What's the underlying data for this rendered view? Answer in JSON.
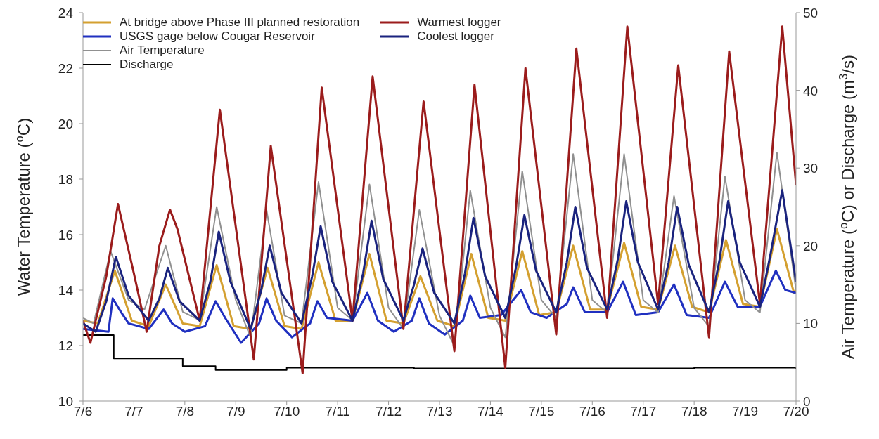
{
  "chart_data": {
    "type": "line",
    "ylabel": "Water Temperature ($^{o}$C)",
    "y2label": "Air Temperature ($^{o}$C) or Discharge (m$^{3}$/s)",
    "xlim": [
      "--07-06",
      "--07-20"
    ],
    "xticks": [
      {
        "value": "--07-06",
        "label": "7/6"
      },
      {
        "value": "--07-07",
        "label": "7/7"
      },
      {
        "value": "--07-08",
        "label": "7/8"
      },
      {
        "value": "--07-09",
        "label": "7/9"
      },
      {
        "value": "--07-10",
        "label": "7/10"
      },
      {
        "value": "--07-11",
        "label": "7/11"
      },
      {
        "value": "--07-12",
        "label": "7/12"
      },
      {
        "value": "--07-13",
        "label": "7/13"
      },
      {
        "value": "--07-14",
        "label": "7/14"
      },
      {
        "value": "--07-15",
        "label": "7/15"
      },
      {
        "value": "--07-16",
        "label": "7/16"
      },
      {
        "value": "--07-17",
        "label": "7/17"
      },
      {
        "value": "--07-18",
        "label": "7/18"
      },
      {
        "value": "--07-19",
        "label": "7/19"
      },
      {
        "value": "--07-20",
        "label": "7/20"
      }
    ],
    "ylim": [
      10,
      24
    ],
    "yticks": [
      10,
      12,
      14,
      16,
      18,
      20,
      22,
      24
    ],
    "y2lim": [
      0,
      50
    ],
    "y2ticks": [
      0,
      10,
      20,
      30,
      40,
      50
    ],
    "legend": "top left",
    "marker": "none",
    "line_style": "solid",
    "grid": false,
    "series": [
      {
        "name": "At bridge above Phase III planned restoration",
        "color": "#d4a030",
        "x": [
          "--07-06T00:00",
          "--07-06T07:00",
          "--07-06T15:00",
          "--07-06T23:00",
          "--07-07T07:00",
          "--07-07T15:00",
          "--07-07T23:00",
          "--07-08T07:00",
          "--07-08T15:00",
          "--07-08T23:00",
          "--07-09T07:00",
          "--07-09T15:00",
          "--07-09T23:00",
          "--07-10T07:00",
          "--07-10T15:00",
          "--07-10T23:00",
          "--07-11T07:00",
          "--07-11T15:00",
          "--07-11T23:00",
          "--07-12T07:00",
          "--07-12T15:00",
          "--07-12T23:00",
          "--07-13T07:00",
          "--07-13T15:00",
          "--07-13T23:00",
          "--07-14T07:00",
          "--07-14T15:00",
          "--07-14T23:00",
          "--07-15T07:00",
          "--07-15T15:00",
          "--07-15T23:00",
          "--07-16T07:00",
          "--07-16T15:00",
          "--07-16T23:00",
          "--07-17T07:00",
          "--07-17T15:00",
          "--07-17T23:00",
          "--07-18T07:00",
          "--07-18T15:00",
          "--07-18T23:00",
          "--07-19T07:00",
          "--07-19T15:00",
          "--07-19T23:00",
          "--07-20T00:00"
        ],
        "values": [
          12.9,
          12.8,
          14.7,
          12.9,
          12.7,
          14.2,
          12.8,
          12.7,
          14.9,
          12.7,
          12.6,
          14.8,
          12.7,
          12.6,
          15.0,
          12.9,
          12.9,
          15.3,
          12.9,
          12.8,
          14.5,
          12.9,
          12.7,
          15.3,
          13.0,
          12.9,
          15.4,
          13.1,
          13.2,
          15.6,
          13.3,
          13.3,
          15.7,
          13.4,
          13.3,
          15.6,
          13.4,
          13.2,
          15.8,
          13.5,
          13.4,
          16.2,
          13.9,
          14.0
        ]
      },
      {
        "name": "USGS gage below Cougar Reservoir",
        "color": "#2030c0",
        "x": [
          "--07-06T00:00",
          "--07-06T12:00",
          "--07-06T14:00",
          "--07-06T18:00",
          "--07-06T21:30",
          "--07-07T07:00",
          "--07-07T14:00",
          "--07-07T18:00",
          "--07-08T00:00",
          "--07-08T09:30",
          "--07-08T14:30",
          "--07-08T19:00",
          "--07-09T02:30",
          "--07-09T11:00",
          "--07-09T14:30",
          "--07-09T19:00",
          "--07-10T02:30",
          "--07-10T11:00",
          "--07-10T14:30",
          "--07-10T19:00",
          "--07-11T07:00",
          "--07-11T14:00",
          "--07-11T19:00",
          "--07-12T02:30",
          "--07-12T11:00",
          "--07-12T14:30",
          "--07-12T19:00",
          "--07-13T02:30",
          "--07-13T11:00",
          "--07-13T14:30",
          "--07-13T19:00",
          "--07-14T05:00",
          "--07-14T14:30",
          "--07-14T19:00",
          "--07-15T02:30",
          "--07-15T12:00",
          "--07-15T15:00",
          "--07-15T20:30",
          "--07-16T07:00",
          "--07-16T14:30",
          "--07-16T20:30",
          "--07-17T07:00",
          "--07-17T14:30",
          "--07-17T20:30",
          "--07-18T07:00",
          "--07-18T14:30",
          "--07-18T20:30",
          "--07-19T07:00",
          "--07-19T14:30",
          "--07-19T19:00",
          "--07-20T00:00"
        ],
        "values": [
          12.6,
          12.5,
          13.7,
          13.2,
          12.8,
          12.6,
          13.3,
          12.8,
          12.5,
          12.7,
          13.6,
          13.0,
          12.1,
          12.8,
          13.7,
          12.9,
          12.3,
          12.8,
          13.6,
          13.0,
          12.9,
          13.9,
          12.9,
          12.5,
          12.9,
          13.7,
          12.8,
          12.4,
          12.9,
          13.8,
          13.0,
          13.1,
          14.0,
          13.2,
          13.0,
          13.5,
          14.1,
          13.2,
          13.2,
          14.3,
          13.1,
          13.2,
          14.2,
          13.1,
          13.0,
          14.3,
          13.4,
          13.4,
          14.7,
          14.0,
          13.9
        ]
      },
      {
        "name": "Air Temperature",
        "color": "#909090",
        "axis": "y2",
        "x": [
          "--07-06T00:00",
          "--07-06T05:00",
          "--07-06T13:00",
          "--07-06T21:30",
          "--07-07T05:00",
          "--07-07T15:00",
          "--07-07T23:00",
          "--07-08T07:00",
          "--07-08T15:00",
          "--07-09T00:00",
          "--07-09T07:00",
          "--07-09T14:30",
          "--07-09T23:00",
          "--07-10T07:00",
          "--07-10T15:00",
          "--07-11T00:00",
          "--07-11T07:00",
          "--07-11T15:00",
          "--07-12T00:00",
          "--07-12T07:00",
          "--07-12T14:30",
          "--07-13T00:00",
          "--07-13T07:00",
          "--07-13T14:30",
          "--07-14T00:00",
          "--07-14T07:00",
          "--07-14T15:00",
          "--07-15T00:00",
          "--07-15T07:00",
          "--07-15T15:00",
          "--07-16T00:00",
          "--07-16T07:00",
          "--07-16T15:00",
          "--07-17T00:00",
          "--07-17T07:00",
          "--07-17T14:30",
          "--07-18T00:00",
          "--07-18T07:00",
          "--07-18T14:30",
          "--07-19T00:00",
          "--07-19T07:00",
          "--07-19T15:00",
          "--07-20T00:00"
        ],
        "values": [
          10.7,
          10.0,
          19.3,
          13,
          11.8,
          20.0,
          11.5,
          10.4,
          25.0,
          13,
          8.2,
          24.6,
          11,
          10.0,
          28.2,
          12,
          10.4,
          27.9,
          12,
          9.3,
          24.6,
          11,
          7.1,
          27.1,
          12,
          8.2,
          29.6,
          13,
          10.7,
          31.8,
          13,
          11.4,
          31.8,
          13,
          11.4,
          26.4,
          12,
          9.6,
          28.9,
          13,
          11.4,
          32.0,
          14.3
        ]
      },
      {
        "name": "Discharge",
        "color": "#000000",
        "axis": "y2",
        "type": "step",
        "x": [
          "--07-06T00:00",
          "--07-06T14:30",
          "--07-07T23:00",
          "--07-08T14:30",
          "--07-10T00:00",
          "--07-12T12:00",
          "--07-15T00:00",
          "--07-18T00:00",
          "--07-20T00:00"
        ],
        "values": [
          8.5,
          5.5,
          4.5,
          4.0,
          4.3,
          4.2,
          4.2,
          4.3,
          4.1
        ]
      },
      {
        "name": "Warmest logger",
        "color": "#9b1c1c",
        "x": [
          "--07-06T00:00",
          "--07-06T03:30",
          "--07-06T11:00",
          "--07-06T16:30",
          "--07-07T00:00",
          "--07-07T06:00",
          "--07-07T12:00",
          "--07-07T17:00",
          "--07-07T20:30",
          "--07-08T07:00",
          "--07-08T16:30",
          "--07-09T08:30",
          "--07-09T16:30",
          "--07-10T07:30",
          "--07-10T16:30",
          "--07-11T07:00",
          "--07-11T16:30",
          "--07-12T07:00",
          "--07-12T16:30",
          "--07-13T07:00",
          "--07-13T16:30",
          "--07-14T07:00",
          "--07-14T16:30",
          "--07-15T07:00",
          "--07-15T16:30",
          "--07-16T07:00",
          "--07-16T16:30",
          "--07-17T07:00",
          "--07-17T16:30",
          "--07-18T07:00",
          "--07-18T16:30",
          "--07-19T07:00",
          "--07-19T17:30",
          "--07-20T00:00"
        ],
        "values": [
          12.9,
          12.1,
          14.5,
          17.1,
          14.6,
          12.5,
          15.6,
          16.9,
          16.2,
          12.9,
          20.5,
          11.5,
          19.2,
          11.0,
          21.3,
          12.9,
          21.7,
          12.6,
          20.8,
          11.8,
          21.4,
          11.2,
          22.0,
          12.4,
          22.7,
          13.0,
          23.5,
          13.5,
          22.1,
          12.3,
          22.6,
          13.5,
          23.5,
          17.8
        ]
      },
      {
        "name": "Coolest logger",
        "color": "#1a237e",
        "x": [
          "--07-06T00:00",
          "--07-06T06:00",
          "--07-06T11:00",
          "--07-06T15:30",
          "--07-06T21:30",
          "--07-07T07:00",
          "--07-07T12:00",
          "--07-07T16:00",
          "--07-07T21:30",
          "--07-08T07:00",
          "--07-08T12:00",
          "--07-08T16:00",
          "--07-08T21:30",
          "--07-09T07:00",
          "--07-09T12:00",
          "--07-09T16:00",
          "--07-09T21:30",
          "--07-10T07:00",
          "--07-10T12:00",
          "--07-10T16:00",
          "--07-10T21:30",
          "--07-11T07:00",
          "--07-11T12:00",
          "--07-11T16:00",
          "--07-11T21:30",
          "--07-12T07:00",
          "--07-12T12:00",
          "--07-12T16:00",
          "--07-12T21:30",
          "--07-13T07:00",
          "--07-13T12:00",
          "--07-13T16:00",
          "--07-13T21:30",
          "--07-14T07:00",
          "--07-14T12:00",
          "--07-14T16:00",
          "--07-14T21:30",
          "--07-15T07:00",
          "--07-15T12:00",
          "--07-15T16:00",
          "--07-15T21:30",
          "--07-16T07:00",
          "--07-16T12:00",
          "--07-16T16:00",
          "--07-16T21:30",
          "--07-17T07:00",
          "--07-17T12:00",
          "--07-17T16:00",
          "--07-17T21:30",
          "--07-18T07:00",
          "--07-18T12:00",
          "--07-18T16:00",
          "--07-18T21:30",
          "--07-19T07:00",
          "--07-19T12:00",
          "--07-19T17:30",
          "--07-20T00:00"
        ],
        "values": [
          12.8,
          12.5,
          13.6,
          15.2,
          13.8,
          12.9,
          13.7,
          14.8,
          13.6,
          12.9,
          14.3,
          16.1,
          14.3,
          12.6,
          14.0,
          15.6,
          13.9,
          12.8,
          14.5,
          16.3,
          14.3,
          12.9,
          14.6,
          16.5,
          14.4,
          12.9,
          14.2,
          15.5,
          13.9,
          12.8,
          14.6,
          16.6,
          14.5,
          13.0,
          14.8,
          16.7,
          14.7,
          13.2,
          15.0,
          17.0,
          14.8,
          13.3,
          15.1,
          17.2,
          15.0,
          13.3,
          15.0,
          17.0,
          14.9,
          13.2,
          15.1,
          17.2,
          15.0,
          13.4,
          15.3,
          17.6,
          14.3
        ]
      }
    ]
  }
}
